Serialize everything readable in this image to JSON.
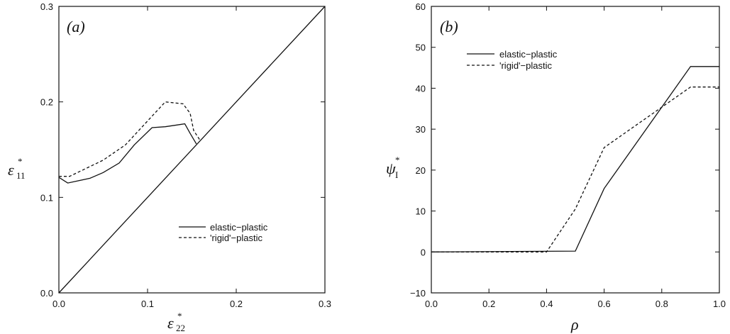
{
  "chart_data": [
    {
      "panel_label": "(a)",
      "type": "line",
      "xlabel_main": "ε",
      "xlabel_sub": "22",
      "xlabel_sup": "*",
      "ylabel_main": "ε",
      "ylabel_sub": "11",
      "ylabel_sup": "*",
      "xlim": [
        0,
        0.3
      ],
      "ylim": [
        0,
        0.3
      ],
      "xticks": [
        "0.0",
        "0.1",
        "0.2",
        "0.3"
      ],
      "yticks": [
        "0.0",
        "0.1",
        "0.2",
        "0.3"
      ],
      "legend_position": "lower-right",
      "series": [
        {
          "name": "elastic−plastic",
          "style": "solid",
          "points": [
            [
              0.0,
              0.121
            ],
            [
              0.01,
              0.115
            ],
            [
              0.035,
              0.12
            ],
            [
              0.05,
              0.126
            ],
            [
              0.068,
              0.136
            ],
            [
              0.085,
              0.155
            ],
            [
              0.105,
              0.173
            ],
            [
              0.12,
              0.174
            ],
            [
              0.142,
              0.177
            ],
            [
              0.148,
              0.167
            ],
            [
              0.155,
              0.156
            ]
          ]
        },
        {
          "name": "'rigid'−plastic",
          "style": "dashed",
          "points": [
            [
              0.0,
              0.122
            ],
            [
              0.012,
              0.122
            ],
            [
              0.03,
              0.13
            ],
            [
              0.05,
              0.139
            ],
            [
              0.075,
              0.155
            ],
            [
              0.1,
              0.18
            ],
            [
              0.12,
              0.2
            ],
            [
              0.14,
              0.198
            ],
            [
              0.148,
              0.188
            ],
            [
              0.152,
              0.17
            ],
            [
              0.159,
              0.16
            ]
          ]
        },
        {
          "name": "",
          "style": "solid",
          "points": [
            [
              0.0,
              0.0
            ],
            [
              0.3,
              0.3
            ]
          ]
        }
      ]
    },
    {
      "panel_label": "(b)",
      "type": "line",
      "xlabel_main": "ρ",
      "ylabel_main": "ψ",
      "ylabel_sub": "I",
      "ylabel_sup": "*",
      "xlim": [
        0,
        1.0
      ],
      "ylim": [
        -10,
        60
      ],
      "xticks": [
        "0.0",
        "0.2",
        "0.4",
        "0.6",
        "0.8",
        "1.0"
      ],
      "yticks": [
        "−10",
        "0",
        "10",
        "20",
        "30",
        "40",
        "50",
        "60"
      ],
      "legend_position": "top-left",
      "series": [
        {
          "name": "elastic−plastic",
          "style": "solid",
          "points": [
            [
              0.0,
              0.0
            ],
            [
              0.5,
              0.2
            ],
            [
              0.6,
              15.5
            ],
            [
              0.9,
              45.3
            ],
            [
              1.0,
              45.3
            ]
          ]
        },
        {
          "name": "'rigid'−plastic",
          "style": "dashed",
          "points": [
            [
              0.0,
              0.0
            ],
            [
              0.4,
              0.0
            ],
            [
              0.5,
              10.5
            ],
            [
              0.6,
              25.5
            ],
            [
              0.9,
              40.3
            ],
            [
              1.0,
              40.3
            ]
          ]
        }
      ]
    }
  ]
}
